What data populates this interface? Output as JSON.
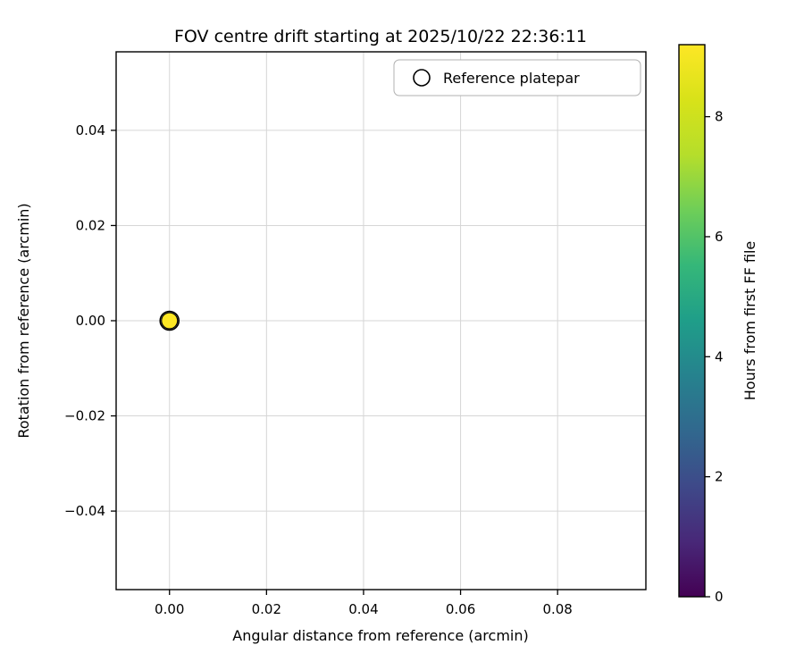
{
  "figure": {
    "title": "FOV centre drift starting at 2025/10/22 22:36:11"
  },
  "chart_data": {
    "type": "scatter",
    "title": "FOV centre drift starting at 2025/10/22 22:36:11",
    "xlabel": "Angular distance from reference (arcmin)",
    "ylabel": "Rotation from reference (arcmin)",
    "xlim": [
      -0.011,
      0.0982
    ],
    "ylim": [
      -0.0565,
      0.0565
    ],
    "xticks": [
      0.0,
      0.02,
      0.04,
      0.06,
      0.08
    ],
    "x_tick_labels": [
      "0.00",
      "0.02",
      "0.04",
      "0.06",
      "0.08"
    ],
    "yticks": [
      -0.04,
      -0.02,
      0.0,
      0.02,
      0.04
    ],
    "y_tick_labels": [
      "−0.04",
      "−0.02",
      "0.00",
      "0.02",
      "0.04"
    ],
    "grid": true,
    "legend": {
      "label": "Reference platepar",
      "position": "upper right",
      "marker": "open-circle"
    },
    "reference_marker": {
      "x": 0.0,
      "y": 0.0
    },
    "points": [
      {
        "x": 0.0,
        "y": 0.0,
        "hours_from_first_ff": 9.2,
        "color": "#fde725"
      }
    ],
    "colorbar": {
      "label": "Hours from first FF file",
      "min": 0,
      "max": 9.2,
      "ticks": [
        0,
        2,
        4,
        6,
        8
      ],
      "tick_labels": [
        "0",
        "2",
        "4",
        "6",
        "8"
      ],
      "colormap": "viridis",
      "stops": [
        {
          "t": 0.0,
          "color": "#440154"
        },
        {
          "t": 0.1,
          "color": "#482878"
        },
        {
          "t": 0.2,
          "color": "#3e4989"
        },
        {
          "t": 0.3,
          "color": "#31688e"
        },
        {
          "t": 0.4,
          "color": "#26828e"
        },
        {
          "t": 0.5,
          "color": "#1f9e89"
        },
        {
          "t": 0.6,
          "color": "#35b779"
        },
        {
          "t": 0.7,
          "color": "#6ece58"
        },
        {
          "t": 0.8,
          "color": "#b5de2b"
        },
        {
          "t": 0.9,
          "color": "#d8e219"
        },
        {
          "t": 1.0,
          "color": "#fde725"
        }
      ]
    },
    "style": {
      "grid_color": "#d6d6d6",
      "spine_color": "#000000",
      "point_edge_color": "#000000"
    }
  }
}
